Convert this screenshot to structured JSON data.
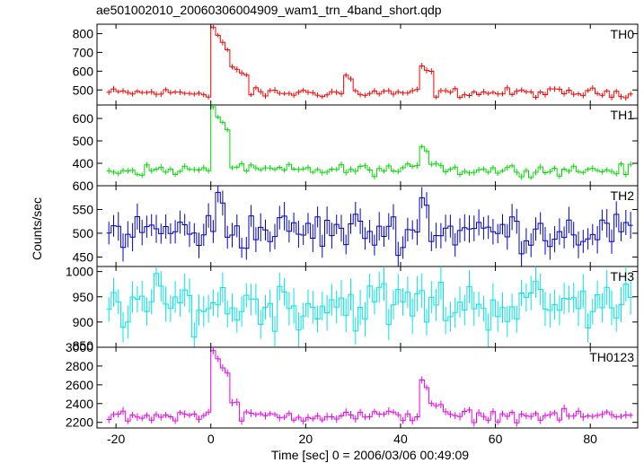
{
  "chart_data": {
    "type": "line",
    "title": "ae501002010_20060306004909_wam1_trn_4band_short.qdp",
    "xlabel": "Time [sec] 0 = 2006/03/06 00:49:09",
    "ylabel": "Counts/sec",
    "xlim": [
      -24,
      90
    ],
    "xticks": [
      -20,
      0,
      20,
      40,
      60,
      80
    ],
    "panels": [
      {
        "name": "TH0",
        "color": "#ff0000",
        "ylim": [
          420,
          850
        ],
        "yticks": [
          500,
          600,
          700,
          800
        ],
        "events": [
          {
            "t0": 0,
            "t1": 3.5,
            "peak": 830
          },
          {
            "t0": 3.5,
            "t1": 8,
            "peak": 620
          },
          {
            "t0": 28,
            "t1": 30,
            "peak": 575
          },
          {
            "t0": 43.5,
            "t1": 47,
            "peak": 630
          }
        ],
        "base": 485,
        "noise": 12,
        "err": 14,
        "clip": false
      },
      {
        "name": "TH1",
        "color": "#00dd00",
        "ylim": [
          300,
          660
        ],
        "yticks": [
          400,
          500,
          600
        ],
        "events": [
          {
            "t0": 0,
            "t1": 3.5,
            "peak": 650
          },
          {
            "t0": 3.5,
            "t1": 6,
            "peak": 380
          },
          {
            "t0": 44,
            "t1": 46,
            "peak": 480
          },
          {
            "t0": 46,
            "t1": 49,
            "peak": 400
          }
        ],
        "base": 370,
        "noise": 12,
        "err": 12,
        "clip": false
      },
      {
        "name": "TH2",
        "color": "#0000cc",
        "ylim": [
          430,
          600
        ],
        "yticks": [
          450,
          500,
          550,
          600
        ],
        "events": [
          {
            "t0": 1,
            "t1": 3,
            "peak": 590
          },
          {
            "t0": 44,
            "t1": 45.5,
            "peak": 570
          }
        ],
        "base": 505,
        "noise": 20,
        "err": 25,
        "clip": false
      },
      {
        "name": "TH3",
        "color": "#00e5e5",
        "ylim": [
          850,
          1010
        ],
        "yticks": [
          900,
          950,
          1000
        ],
        "yticklabels": [
          "900",
          "950",
          "1000"
        ],
        "events": [],
        "base": 935,
        "noise": 25,
        "err": 30,
        "clip": true
      },
      {
        "name": "TH0123",
        "color": "#ee00ee",
        "ylim": [
          2140,
          3000
        ],
        "yticks": [
          2200,
          2400,
          2600,
          2800
        ],
        "events": [
          {
            "t0": 0,
            "t1": 3.5,
            "peak": 2950
          },
          {
            "t0": 3.5,
            "t1": 6,
            "peak": 2420
          },
          {
            "t0": 44,
            "t1": 46,
            "peak": 2650
          },
          {
            "t0": 46,
            "t1": 49,
            "peak": 2400
          }
        ],
        "base": 2270,
        "noise": 30,
        "err": 35,
        "clip": false
      }
    ],
    "overlap_label": "3000",
    "overlap_label2": "850",
    "bin_width": 1,
    "t_start": -22,
    "t_end": 89
  }
}
